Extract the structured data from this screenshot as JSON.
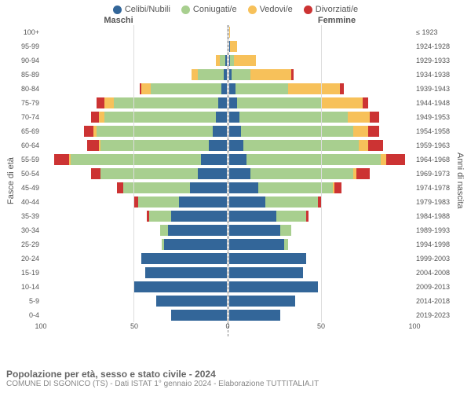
{
  "chart": {
    "type": "population-pyramid",
    "legend": [
      {
        "label": "Celibi/Nubili",
        "color": "#336699"
      },
      {
        "label": "Coniugati/e",
        "color": "#a8cf8f"
      },
      {
        "label": "Vedovi/e",
        "color": "#f7c15a"
      },
      {
        "label": "Divorziati/e",
        "color": "#cc3333"
      }
    ],
    "header_left": "Maschi",
    "header_right": "Femmine",
    "age_axis_label": "Fasce di età",
    "birth_axis_label": "Anni di nascita",
    "x_max": 100,
    "x_ticks": [
      100,
      50,
      0,
      50,
      100
    ],
    "age_labels": [
      "100+",
      "95-99",
      "90-94",
      "85-89",
      "80-84",
      "75-79",
      "70-74",
      "65-69",
      "60-64",
      "55-59",
      "50-54",
      "45-49",
      "40-44",
      "35-39",
      "30-34",
      "25-29",
      "20-24",
      "15-19",
      "10-14",
      "5-9",
      "0-4"
    ],
    "birth_labels": [
      "≤ 1923",
      "1924-1928",
      "1929-1933",
      "1934-1938",
      "1939-1943",
      "1944-1948",
      "1949-1953",
      "1954-1958",
      "1959-1963",
      "1964-1968",
      "1969-1973",
      "1974-1978",
      "1979-1983",
      "1984-1988",
      "1989-1993",
      "1994-1998",
      "1999-2003",
      "2004-2008",
      "2009-2013",
      "2014-2018",
      "2019-2023"
    ],
    "rows": [
      {
        "m": {
          "cel": 0,
          "con": 0,
          "ved": 0,
          "div": 0
        },
        "f": {
          "cel": 0,
          "con": 0,
          "ved": 1,
          "div": 0
        }
      },
      {
        "m": {
          "cel": 0,
          "con": 0,
          "ved": 0,
          "div": 0
        },
        "f": {
          "cel": 1,
          "con": 0,
          "ved": 4,
          "div": 0
        }
      },
      {
        "m": {
          "cel": 1,
          "con": 3,
          "ved": 2,
          "div": 0
        },
        "f": {
          "cel": 1,
          "con": 2,
          "ved": 12,
          "div": 0
        }
      },
      {
        "m": {
          "cel": 2,
          "con": 14,
          "ved": 3,
          "div": 0
        },
        "f": {
          "cel": 2,
          "con": 10,
          "ved": 22,
          "div": 1
        }
      },
      {
        "m": {
          "cel": 3,
          "con": 38,
          "ved": 5,
          "div": 1
        },
        "f": {
          "cel": 4,
          "con": 28,
          "ved": 28,
          "div": 2
        }
      },
      {
        "m": {
          "cel": 5,
          "con": 56,
          "ved": 5,
          "div": 4
        },
        "f": {
          "cel": 5,
          "con": 45,
          "ved": 22,
          "div": 3
        }
      },
      {
        "m": {
          "cel": 6,
          "con": 60,
          "ved": 3,
          "div": 4
        },
        "f": {
          "cel": 6,
          "con": 58,
          "ved": 12,
          "div": 5
        }
      },
      {
        "m": {
          "cel": 8,
          "con": 62,
          "ved": 2,
          "div": 5
        },
        "f": {
          "cel": 7,
          "con": 60,
          "ved": 8,
          "div": 6
        }
      },
      {
        "m": {
          "cel": 10,
          "con": 58,
          "ved": 1,
          "div": 6
        },
        "f": {
          "cel": 8,
          "con": 62,
          "ved": 5,
          "div": 8
        }
      },
      {
        "m": {
          "cel": 14,
          "con": 70,
          "ved": 1,
          "div": 8
        },
        "f": {
          "cel": 10,
          "con": 72,
          "ved": 3,
          "div": 10
        }
      },
      {
        "m": {
          "cel": 16,
          "con": 52,
          "ved": 0,
          "div": 5
        },
        "f": {
          "cel": 12,
          "con": 55,
          "ved": 2,
          "div": 7
        }
      },
      {
        "m": {
          "cel": 20,
          "con": 36,
          "ved": 0,
          "div": 3
        },
        "f": {
          "cel": 16,
          "con": 40,
          "ved": 1,
          "div": 4
        }
      },
      {
        "m": {
          "cel": 26,
          "con": 22,
          "ved": 0,
          "div": 2
        },
        "f": {
          "cel": 20,
          "con": 28,
          "ved": 0,
          "div": 2
        }
      },
      {
        "m": {
          "cel": 30,
          "con": 12,
          "ved": 0,
          "div": 1
        },
        "f": {
          "cel": 26,
          "con": 16,
          "ved": 0,
          "div": 1
        }
      },
      {
        "m": {
          "cel": 32,
          "con": 4,
          "ved": 0,
          "div": 0
        },
        "f": {
          "cel": 28,
          "con": 6,
          "ved": 0,
          "div": 0
        }
      },
      {
        "m": {
          "cel": 34,
          "con": 1,
          "ved": 0,
          "div": 0
        },
        "f": {
          "cel": 30,
          "con": 2,
          "ved": 0,
          "div": 0
        }
      },
      {
        "m": {
          "cel": 46,
          "con": 0,
          "ved": 0,
          "div": 0
        },
        "f": {
          "cel": 42,
          "con": 0,
          "ved": 0,
          "div": 0
        }
      },
      {
        "m": {
          "cel": 44,
          "con": 0,
          "ved": 0,
          "div": 0
        },
        "f": {
          "cel": 40,
          "con": 0,
          "ved": 0,
          "div": 0
        }
      },
      {
        "m": {
          "cel": 50,
          "con": 0,
          "ved": 0,
          "div": 0
        },
        "f": {
          "cel": 48,
          "con": 0,
          "ved": 0,
          "div": 0
        }
      },
      {
        "m": {
          "cel": 38,
          "con": 0,
          "ved": 0,
          "div": 0
        },
        "f": {
          "cel": 36,
          "con": 0,
          "ved": 0,
          "div": 0
        }
      },
      {
        "m": {
          "cel": 30,
          "con": 0,
          "ved": 0,
          "div": 0
        },
        "f": {
          "cel": 28,
          "con": 0,
          "ved": 0,
          "div": 0
        }
      }
    ],
    "grid_positions_pct": [
      0,
      50,
      100
    ],
    "grid_color": "#dddddd",
    "background_color": "#ffffff",
    "label_fontsize": 9
  },
  "footer": {
    "title": "Popolazione per età, sesso e stato civile - 2024",
    "subtitle": "COMUNE DI SGONICO (TS) - Dati ISTAT 1° gennaio 2024 - Elaborazione TUTTITALIA.IT"
  }
}
